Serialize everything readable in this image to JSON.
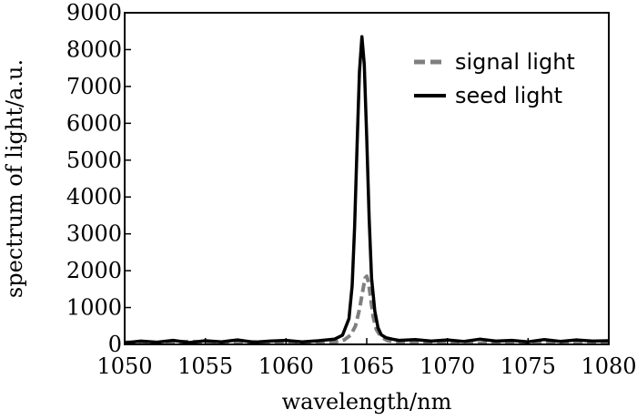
{
  "chart_data": {
    "type": "line",
    "xlabel": "wavelength/nm",
    "ylabel": "spectrum of light/a.u.",
    "xlim": [
      1050,
      1080
    ],
    "ylim": [
      0,
      9000
    ],
    "xticks": [
      1050,
      1055,
      1060,
      1065,
      1070,
      1075,
      1080
    ],
    "yticks": [
      0,
      1000,
      2000,
      3000,
      4000,
      5000,
      6000,
      7000,
      8000,
      9000
    ],
    "grid": false,
    "legend_position": "top-right",
    "series": [
      {
        "name": "signal light",
        "style": "dashed",
        "color": "#7f7f7f",
        "x": [
          1050,
          1052,
          1054,
          1056,
          1058,
          1060,
          1062,
          1063,
          1063.6,
          1064.0,
          1064.3,
          1064.55,
          1064.75,
          1064.9,
          1065.0,
          1065.1,
          1065.25,
          1065.4,
          1065.6,
          1065.9,
          1066.3,
          1067,
          1068,
          1070,
          1072,
          1074,
          1076,
          1078,
          1080
        ],
        "y": [
          60,
          40,
          80,
          30,
          70,
          50,
          40,
          60,
          120,
          250,
          500,
          950,
          1450,
          1800,
          1850,
          1700,
          1250,
          750,
          400,
          200,
          100,
          60,
          40,
          70,
          30,
          60,
          40,
          70,
          50
        ]
      },
      {
        "name": "seed light",
        "style": "solid",
        "color": "#000000",
        "x": [
          1050,
          1051,
          1052,
          1053,
          1054,
          1055,
          1056,
          1057,
          1058,
          1059,
          1060,
          1061,
          1062,
          1063,
          1063.5,
          1063.9,
          1064.1,
          1064.25,
          1064.4,
          1064.55,
          1064.7,
          1064.85,
          1065.0,
          1065.15,
          1065.3,
          1065.5,
          1065.7,
          1065.9,
          1066.2,
          1066.6,
          1067,
          1068,
          1069,
          1070,
          1071,
          1072,
          1073,
          1074,
          1075,
          1076,
          1077,
          1078,
          1079,
          1080
        ],
        "y": [
          40,
          90,
          60,
          110,
          50,
          100,
          70,
          120,
          60,
          90,
          110,
          70,
          100,
          140,
          250,
          700,
          1600,
          3200,
          5400,
          7400,
          8350,
          7600,
          5600,
          3400,
          1800,
          900,
          450,
          260,
          180,
          140,
          110,
          130,
          90,
          120,
          80,
          140,
          90,
          110,
          70,
          130,
          80,
          120,
          90,
          100
        ]
      }
    ]
  }
}
